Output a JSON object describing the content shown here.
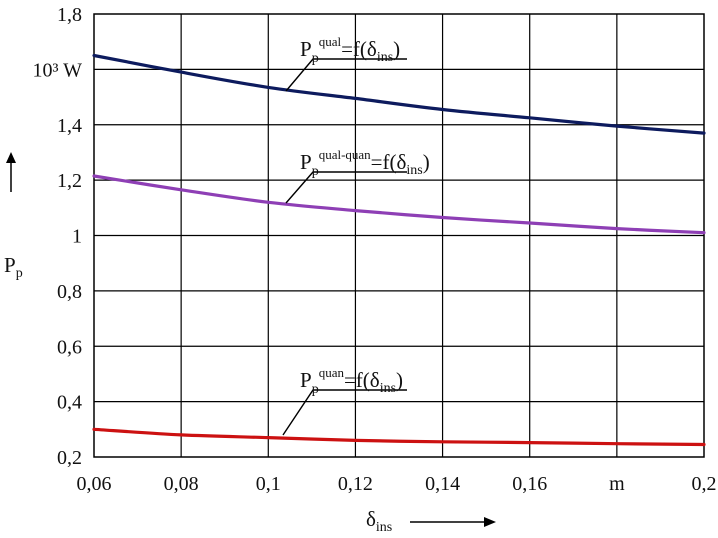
{
  "chart_data": {
    "type": "line",
    "xlim": [
      0.06,
      0.2
    ],
    "ylim": [
      0.2,
      1.8
    ],
    "x_ticks": [
      {
        "value": 0.06,
        "label": "0,06"
      },
      {
        "value": 0.08,
        "label": "0,08"
      },
      {
        "value": 0.1,
        "label": "0,1"
      },
      {
        "value": 0.12,
        "label": "0,12"
      },
      {
        "value": 0.14,
        "label": "0,14"
      },
      {
        "value": 0.16,
        "label": "0,16"
      },
      {
        "value": 0.18,
        "label": "m"
      },
      {
        "value": 0.2,
        "label": "0,2"
      }
    ],
    "y_ticks": [
      {
        "value": 0.2,
        "label": "0,2"
      },
      {
        "value": 0.4,
        "label": "0,4"
      },
      {
        "value": 0.6,
        "label": "0,6"
      },
      {
        "value": 0.8,
        "label": "0,8"
      },
      {
        "value": 1.0,
        "label": "1"
      },
      {
        "value": 1.2,
        "label": "1,2"
      },
      {
        "value": 1.4,
        "label": "1,4"
      },
      {
        "value": 1.6,
        "label": "10³ W"
      },
      {
        "value": 1.8,
        "label": "1,8"
      }
    ],
    "ylabel": {
      "main": "P",
      "sub": "p"
    },
    "xlabel": {
      "main": "δ",
      "sub": "ins"
    },
    "series": [
      {
        "name": "qual",
        "color": "#0d1b5e",
        "x": [
          0.06,
          0.08,
          0.1,
          0.12,
          0.14,
          0.16,
          0.18,
          0.2
        ],
        "values": [
          1.65,
          1.59,
          1.535,
          1.495,
          1.455,
          1.425,
          1.395,
          1.37
        ],
        "annotation": {
          "main": "P",
          "sub": "p",
          "sup": "qual",
          "rest": "=f(δ",
          "sub2": "ins",
          "close": ")"
        }
      },
      {
        "name": "qual-quan",
        "color": "#8e3fb5",
        "x": [
          0.06,
          0.08,
          0.1,
          0.12,
          0.14,
          0.16,
          0.18,
          0.2
        ],
        "values": [
          1.215,
          1.165,
          1.12,
          1.09,
          1.065,
          1.045,
          1.025,
          1.01
        ],
        "annotation": {
          "main": "P",
          "sub": "p",
          "sup": "qual-quan",
          "rest": "=f(δ",
          "sub2": "ins",
          "close": ")"
        }
      },
      {
        "name": "quan",
        "color": "#cc1111",
        "x": [
          0.06,
          0.08,
          0.1,
          0.12,
          0.14,
          0.16,
          0.18,
          0.2
        ],
        "values": [
          0.3,
          0.28,
          0.27,
          0.26,
          0.255,
          0.252,
          0.248,
          0.245
        ],
        "annotation": {
          "main": "P",
          "sub": "p",
          "sup": "quan",
          "rest": "=f(δ",
          "sub2": "ins",
          "close": ")"
        }
      }
    ]
  }
}
